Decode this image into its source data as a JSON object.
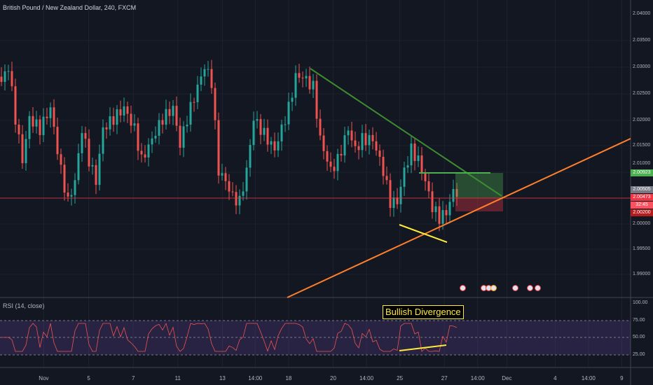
{
  "header": {
    "title": "British Pound / New Zealand Dollar, 240, FXCM"
  },
  "rsi": {
    "label": "RSI (14, close)",
    "levels": [
      "100.00",
      "75.00",
      "50.00",
      "25.00"
    ]
  },
  "annotation": {
    "text": "Bullish Divergence"
  },
  "price_axis": {
    "labels": [
      "2.04000",
      "2.03500",
      "2.03000",
      "2.02500",
      "2.02000",
      "2.01500",
      "2.01000",
      "2.00000",
      "1.99500",
      "1.99000"
    ]
  },
  "price_tags": [
    {
      "text": "2.00923",
      "color": "#4caf50"
    },
    {
      "text": "2.00505",
      "color": "#787b86"
    },
    {
      "text": "2.00473",
      "color": "#f23645"
    },
    {
      "text": "32:45",
      "color": "#f7525f"
    },
    {
      "text": "2.00200",
      "color": "#b71c1c"
    }
  ],
  "time_axis": [
    "Nov",
    "5",
    "7",
    "11",
    "13",
    "14:00",
    "18",
    "20",
    "14:00",
    "25",
    "27",
    "14:00",
    "Dec",
    "4",
    "14:00",
    "9"
  ],
  "colors": {
    "up": "#26a69a",
    "down": "#ef5350",
    "background": "#131722"
  },
  "chart_data": {
    "type": "candlestick",
    "keypoints": [
      [
        0,
        2.027
      ],
      [
        2,
        2.03
      ],
      [
        4,
        2.02
      ],
      [
        6,
        2.012
      ],
      [
        8,
        2.02
      ],
      [
        11,
        2.018
      ],
      [
        14,
        2.022
      ],
      [
        17,
        2.01
      ],
      [
        19,
        2.004
      ],
      [
        21,
        2.008
      ],
      [
        23,
        2.018
      ],
      [
        25,
        2.012
      ],
      [
        27,
        2.008
      ],
      [
        29,
        2.018
      ],
      [
        32,
        2.02
      ],
      [
        35,
        2.022
      ],
      [
        38,
        2.018
      ],
      [
        40,
        2.012
      ],
      [
        43,
        2.016
      ],
      [
        46,
        2.02
      ],
      [
        49,
        2.022
      ],
      [
        51,
        2.015
      ],
      [
        53,
        2.02
      ],
      [
        56,
        2.026
      ],
      [
        58,
        2.03
      ],
      [
        60,
        2.027
      ],
      [
        62,
        2.01
      ],
      [
        64,
        2.008
      ],
      [
        66,
        2.005
      ],
      [
        68,
        2.004
      ],
      [
        70,
        2.01
      ],
      [
        72,
        2.02
      ],
      [
        74,
        2.018
      ],
      [
        76,
        2.016
      ],
      [
        78,
        2.014
      ],
      [
        80,
        2.018
      ],
      [
        82,
        2.022
      ],
      [
        84,
        2.028
      ],
      [
        86,
        2.028
      ],
      [
        89,
        2.026
      ],
      [
        91,
        2.016
      ],
      [
        94,
        2.01
      ],
      [
        96,
        2.012
      ],
      [
        99,
        2.018
      ],
      [
        101,
        2.014
      ],
      [
        103,
        2.016
      ],
      [
        106,
        2.016
      ],
      [
        109,
        2.01
      ],
      [
        111,
        2.004
      ],
      [
        113,
        2.004
      ],
      [
        115,
        2.01
      ],
      [
        117,
        2.014
      ],
      [
        119,
        2.012
      ],
      [
        121,
        2.008
      ],
      [
        123,
        2.003
      ],
      [
        125,
        2.001
      ],
      [
        127,
        2.002
      ],
      [
        129,
        2.006
      ],
      [
        130,
        2.005
      ]
    ],
    "current_price": 2.00473
  }
}
